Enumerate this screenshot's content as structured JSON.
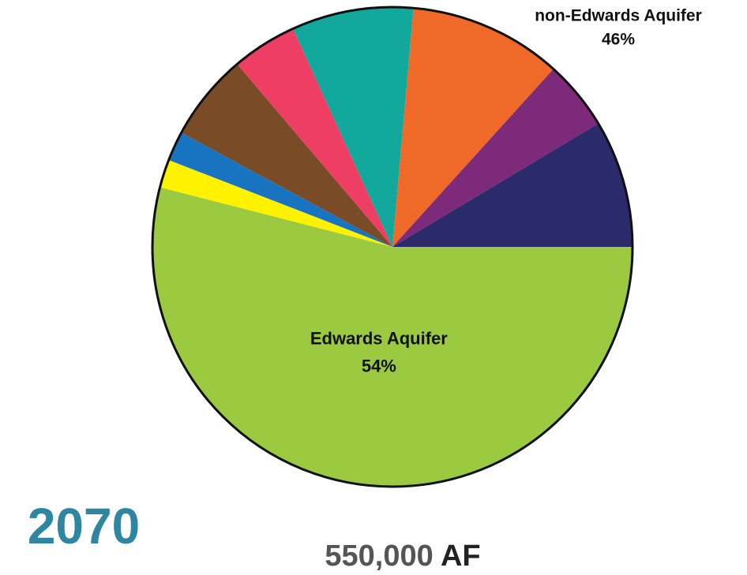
{
  "chart_data": {
    "type": "pie",
    "title": "2070",
    "subtitle": [
      "550,000",
      "AF"
    ],
    "annotations": [
      "non-Edwards Aquifer",
      "46%"
    ],
    "categories": [
      "Edwards Aquifer",
      null,
      null,
      null,
      null,
      null,
      null,
      null,
      null
    ],
    "values": [
      54,
      1.9,
      2,
      5.9,
      4.4,
      8.2,
      10.3,
      4.7,
      8.6
    ],
    "value_labels": [
      "54%",
      null,
      null,
      null,
      null,
      null,
      null,
      null,
      null
    ],
    "colors": [
      "#9bc93f",
      "#fff200",
      "#1874c1",
      "#7a4b27",
      "#ee3e64",
      "#12a89c",
      "#ef6a28",
      "#7e2a7b",
      "#2b2a6b"
    ]
  }
}
